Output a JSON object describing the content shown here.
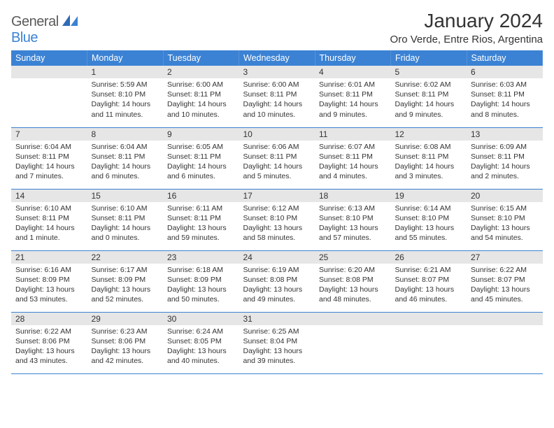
{
  "logo": {
    "text1": "General",
    "text2": "Blue"
  },
  "title": "January 2024",
  "location": "Oro Verde, Entre Rios, Argentina",
  "colors": {
    "header_bg": "#3b82d4",
    "daynum_bg": "#e6e6e6",
    "row_sep": "#3b82d4",
    "text": "#333333"
  },
  "weekdays": [
    "Sunday",
    "Monday",
    "Tuesday",
    "Wednesday",
    "Thursday",
    "Friday",
    "Saturday"
  ],
  "weeks": [
    [
      {
        "n": "",
        "sr": "",
        "ss": "",
        "dl": ""
      },
      {
        "n": "1",
        "sr": "Sunrise: 5:59 AM",
        "ss": "Sunset: 8:10 PM",
        "dl": "Daylight: 14 hours and 11 minutes."
      },
      {
        "n": "2",
        "sr": "Sunrise: 6:00 AM",
        "ss": "Sunset: 8:11 PM",
        "dl": "Daylight: 14 hours and 10 minutes."
      },
      {
        "n": "3",
        "sr": "Sunrise: 6:00 AM",
        "ss": "Sunset: 8:11 PM",
        "dl": "Daylight: 14 hours and 10 minutes."
      },
      {
        "n": "4",
        "sr": "Sunrise: 6:01 AM",
        "ss": "Sunset: 8:11 PM",
        "dl": "Daylight: 14 hours and 9 minutes."
      },
      {
        "n": "5",
        "sr": "Sunrise: 6:02 AM",
        "ss": "Sunset: 8:11 PM",
        "dl": "Daylight: 14 hours and 9 minutes."
      },
      {
        "n": "6",
        "sr": "Sunrise: 6:03 AM",
        "ss": "Sunset: 8:11 PM",
        "dl": "Daylight: 14 hours and 8 minutes."
      }
    ],
    [
      {
        "n": "7",
        "sr": "Sunrise: 6:04 AM",
        "ss": "Sunset: 8:11 PM",
        "dl": "Daylight: 14 hours and 7 minutes."
      },
      {
        "n": "8",
        "sr": "Sunrise: 6:04 AM",
        "ss": "Sunset: 8:11 PM",
        "dl": "Daylight: 14 hours and 6 minutes."
      },
      {
        "n": "9",
        "sr": "Sunrise: 6:05 AM",
        "ss": "Sunset: 8:11 PM",
        "dl": "Daylight: 14 hours and 6 minutes."
      },
      {
        "n": "10",
        "sr": "Sunrise: 6:06 AM",
        "ss": "Sunset: 8:11 PM",
        "dl": "Daylight: 14 hours and 5 minutes."
      },
      {
        "n": "11",
        "sr": "Sunrise: 6:07 AM",
        "ss": "Sunset: 8:11 PM",
        "dl": "Daylight: 14 hours and 4 minutes."
      },
      {
        "n": "12",
        "sr": "Sunrise: 6:08 AM",
        "ss": "Sunset: 8:11 PM",
        "dl": "Daylight: 14 hours and 3 minutes."
      },
      {
        "n": "13",
        "sr": "Sunrise: 6:09 AM",
        "ss": "Sunset: 8:11 PM",
        "dl": "Daylight: 14 hours and 2 minutes."
      }
    ],
    [
      {
        "n": "14",
        "sr": "Sunrise: 6:10 AM",
        "ss": "Sunset: 8:11 PM",
        "dl": "Daylight: 14 hours and 1 minute."
      },
      {
        "n": "15",
        "sr": "Sunrise: 6:10 AM",
        "ss": "Sunset: 8:11 PM",
        "dl": "Daylight: 14 hours and 0 minutes."
      },
      {
        "n": "16",
        "sr": "Sunrise: 6:11 AM",
        "ss": "Sunset: 8:11 PM",
        "dl": "Daylight: 13 hours and 59 minutes."
      },
      {
        "n": "17",
        "sr": "Sunrise: 6:12 AM",
        "ss": "Sunset: 8:10 PM",
        "dl": "Daylight: 13 hours and 58 minutes."
      },
      {
        "n": "18",
        "sr": "Sunrise: 6:13 AM",
        "ss": "Sunset: 8:10 PM",
        "dl": "Daylight: 13 hours and 57 minutes."
      },
      {
        "n": "19",
        "sr": "Sunrise: 6:14 AM",
        "ss": "Sunset: 8:10 PM",
        "dl": "Daylight: 13 hours and 55 minutes."
      },
      {
        "n": "20",
        "sr": "Sunrise: 6:15 AM",
        "ss": "Sunset: 8:10 PM",
        "dl": "Daylight: 13 hours and 54 minutes."
      }
    ],
    [
      {
        "n": "21",
        "sr": "Sunrise: 6:16 AM",
        "ss": "Sunset: 8:09 PM",
        "dl": "Daylight: 13 hours and 53 minutes."
      },
      {
        "n": "22",
        "sr": "Sunrise: 6:17 AM",
        "ss": "Sunset: 8:09 PM",
        "dl": "Daylight: 13 hours and 52 minutes."
      },
      {
        "n": "23",
        "sr": "Sunrise: 6:18 AM",
        "ss": "Sunset: 8:09 PM",
        "dl": "Daylight: 13 hours and 50 minutes."
      },
      {
        "n": "24",
        "sr": "Sunrise: 6:19 AM",
        "ss": "Sunset: 8:08 PM",
        "dl": "Daylight: 13 hours and 49 minutes."
      },
      {
        "n": "25",
        "sr": "Sunrise: 6:20 AM",
        "ss": "Sunset: 8:08 PM",
        "dl": "Daylight: 13 hours and 48 minutes."
      },
      {
        "n": "26",
        "sr": "Sunrise: 6:21 AM",
        "ss": "Sunset: 8:07 PM",
        "dl": "Daylight: 13 hours and 46 minutes."
      },
      {
        "n": "27",
        "sr": "Sunrise: 6:22 AM",
        "ss": "Sunset: 8:07 PM",
        "dl": "Daylight: 13 hours and 45 minutes."
      }
    ],
    [
      {
        "n": "28",
        "sr": "Sunrise: 6:22 AM",
        "ss": "Sunset: 8:06 PM",
        "dl": "Daylight: 13 hours and 43 minutes."
      },
      {
        "n": "29",
        "sr": "Sunrise: 6:23 AM",
        "ss": "Sunset: 8:06 PM",
        "dl": "Daylight: 13 hours and 42 minutes."
      },
      {
        "n": "30",
        "sr": "Sunrise: 6:24 AM",
        "ss": "Sunset: 8:05 PM",
        "dl": "Daylight: 13 hours and 40 minutes."
      },
      {
        "n": "31",
        "sr": "Sunrise: 6:25 AM",
        "ss": "Sunset: 8:04 PM",
        "dl": "Daylight: 13 hours and 39 minutes."
      },
      {
        "n": "",
        "sr": "",
        "ss": "",
        "dl": ""
      },
      {
        "n": "",
        "sr": "",
        "ss": "",
        "dl": ""
      },
      {
        "n": "",
        "sr": "",
        "ss": "",
        "dl": ""
      }
    ]
  ]
}
